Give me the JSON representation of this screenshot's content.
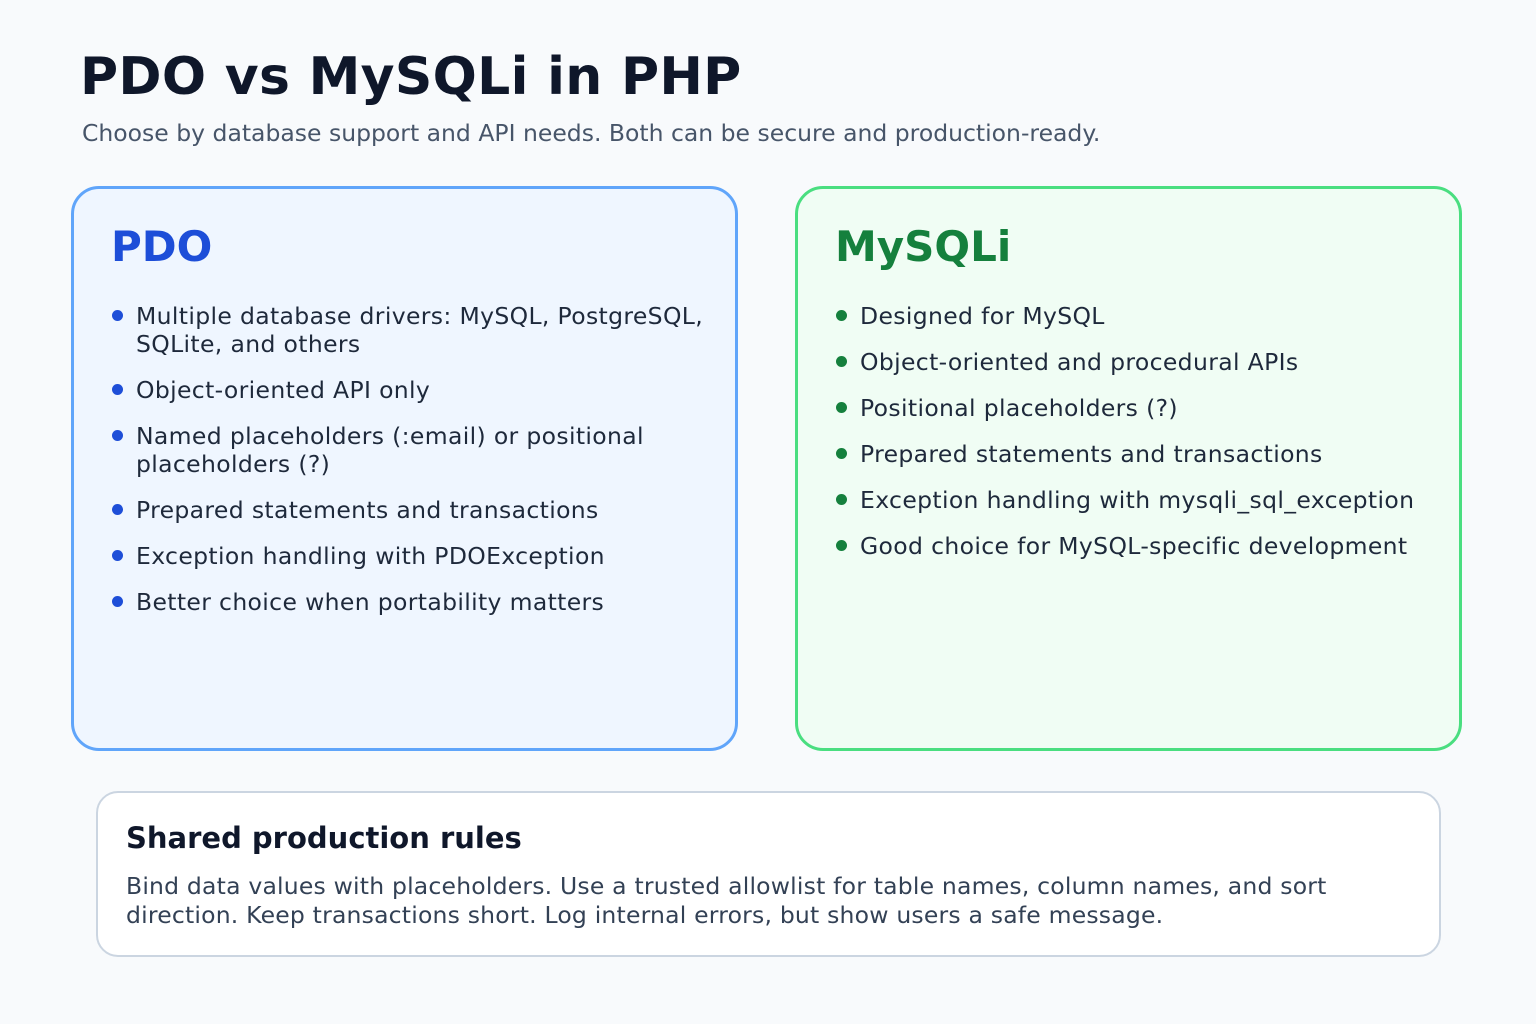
{
  "header": {
    "title": "PDO vs MySQLi in PHP",
    "subtitle": "Choose by database support and API needs. Both can be secure and production-ready."
  },
  "cards": [
    {
      "title": "PDO",
      "accent_color": "#1d4ed8",
      "items": [
        "Multiple database drivers: MySQL, PostgreSQL, SQLite, and others",
        "Object-oriented API only",
        "Named placeholders (:email) or positional placeholders (?)",
        "Prepared statements and transactions",
        "Exception handling with PDOException",
        "Better choice when portability matters"
      ]
    },
    {
      "title": "MySQLi",
      "accent_color": "#15803d",
      "items": [
        "Designed for MySQL",
        "Object-oriented and procedural APIs",
        "Positional placeholders (?)",
        "Prepared statements and transactions",
        "Exception handling with mysqli_sql_exception",
        "Good choice for MySQL-specific development"
      ]
    }
  ],
  "rules": {
    "title": "Shared production rules",
    "text": "Bind data values with placeholders. Use a trusted allowlist for table names, column names, and sort direction. Keep transactions short. Log internal errors, but show users a safe message."
  }
}
